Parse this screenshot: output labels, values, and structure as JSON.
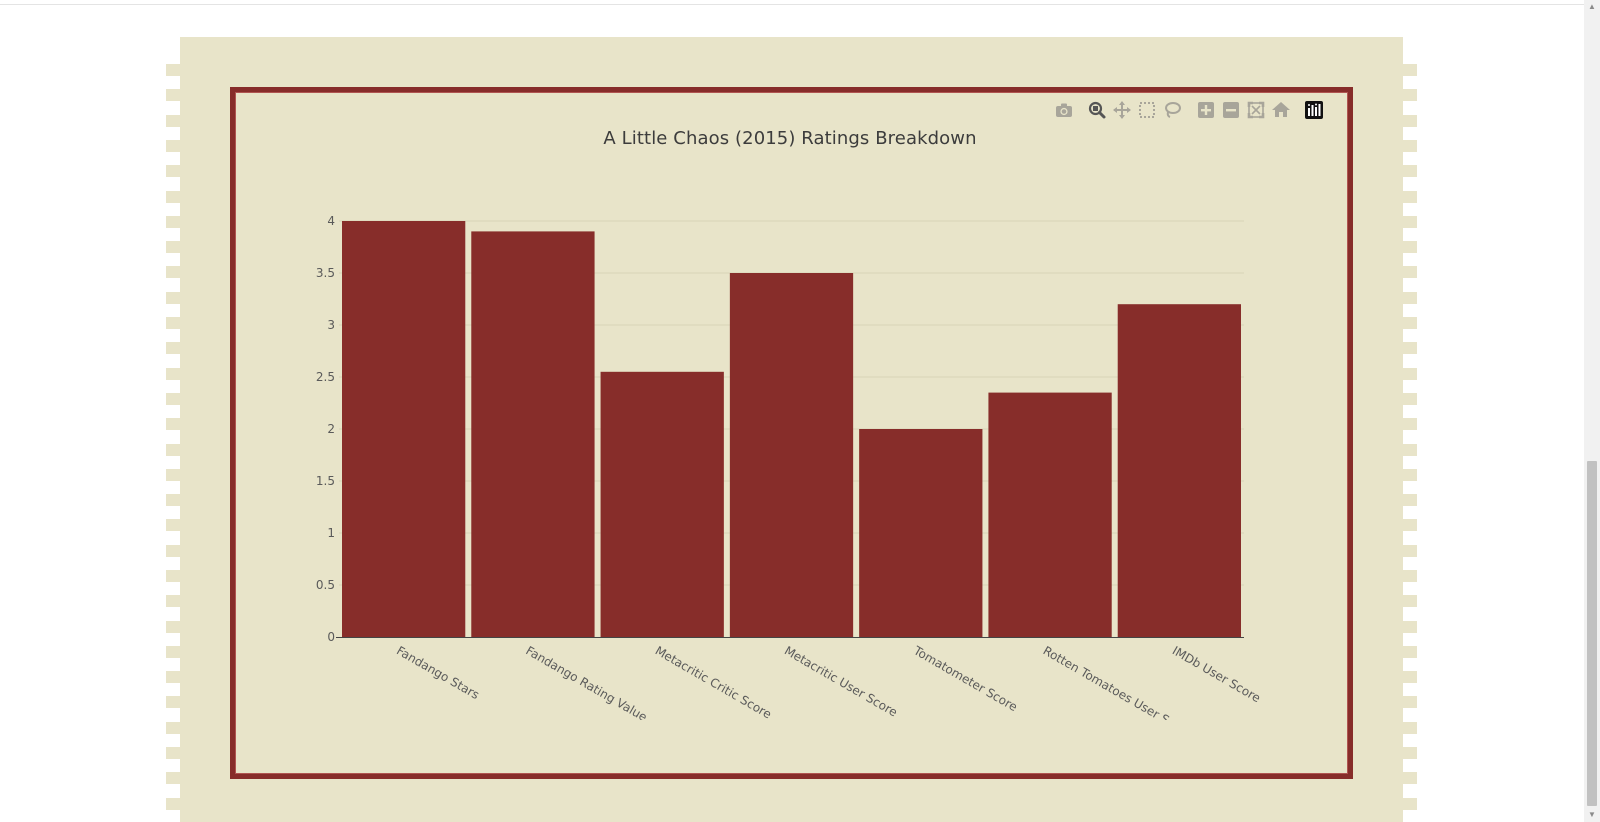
{
  "colors": {
    "bar": "#872d2a",
    "poster_bg": "#e8e4c9",
    "frame": "#872d2a",
    "grid": "#d9d4b8",
    "axis_text": "#5a5a5a",
    "title_text": "#3c3c3c",
    "modebar_icon": "#a8a59a",
    "modebar_logo_bg": "#111111"
  },
  "modebar": {
    "buttons": [
      {
        "name": "download-plot-icon",
        "icon": "camera"
      },
      {
        "name": "zoom-icon",
        "icon": "magnifier"
      },
      {
        "name": "pan-icon",
        "icon": "move-arrows"
      },
      {
        "name": "box-select-icon",
        "icon": "dashed-square"
      },
      {
        "name": "lasso-select-icon",
        "icon": "lasso"
      },
      {
        "name": "zoom-in-icon",
        "icon": "plus-square"
      },
      {
        "name": "zoom-out-icon",
        "icon": "minus-square"
      },
      {
        "name": "autoscale-icon",
        "icon": "expand"
      },
      {
        "name": "reset-axes-icon",
        "icon": "home"
      },
      {
        "name": "plotly-logo-icon",
        "icon": "bar-logo"
      }
    ]
  },
  "chart_data": {
    "type": "bar",
    "title": "A Little Chaos (2015) Ratings Breakdown",
    "xlabel": "",
    "ylabel": "",
    "categories": [
      "Fandango Stars",
      "Fandango Rating Value",
      "Metacritic Critic Score",
      "Metacritic User Score",
      "Tomatometer Score",
      "Rotten Tomatoes User Score",
      "IMDb User Score"
    ],
    "values": [
      4.0,
      3.9,
      2.55,
      3.5,
      2.0,
      2.35,
      3.2
    ],
    "ylim": [
      0,
      4
    ],
    "yticks": [
      "0",
      "0.5",
      "1",
      "1.5",
      "2",
      "2.5",
      "3",
      "3.5",
      "4"
    ],
    "grid": true,
    "legend": "none"
  }
}
